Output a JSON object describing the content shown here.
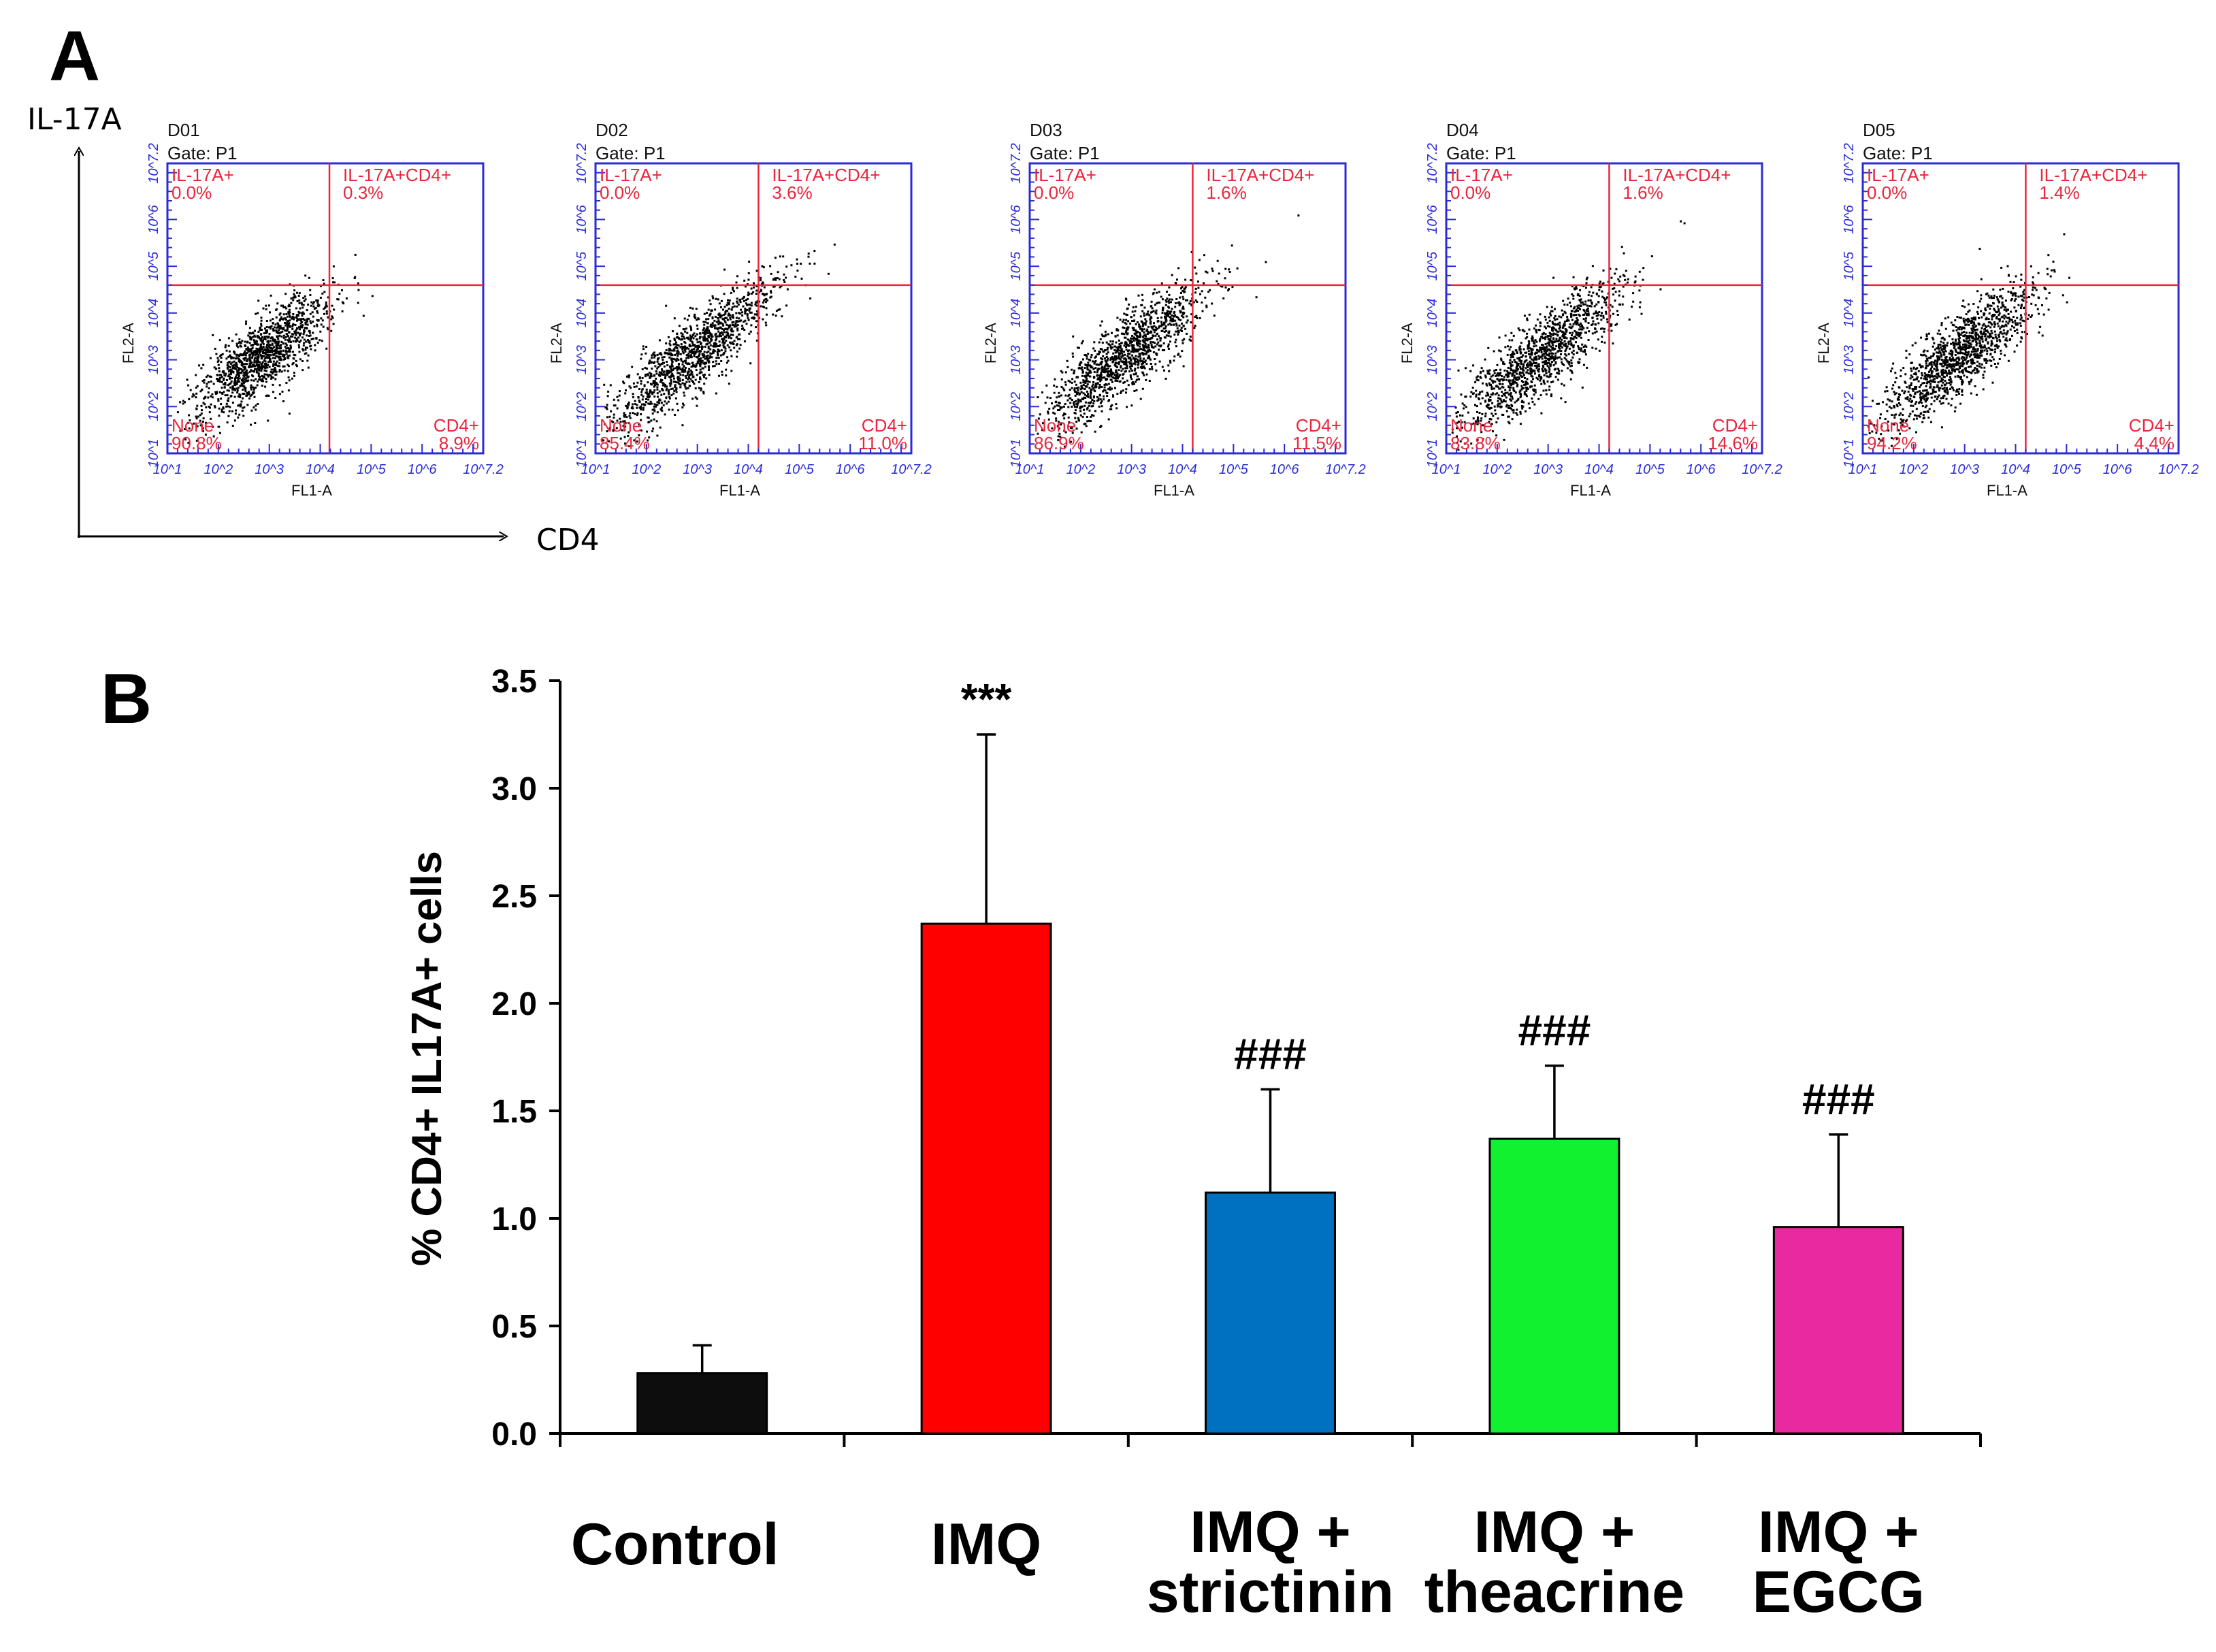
{
  "panels": {
    "a_letter": "A",
    "b_letter": "B"
  },
  "flow": {
    "y_axis_label": "IL-17A",
    "x_axis_label": "CD4",
    "plot_x_label": "FL1-A",
    "plot_y_label": "FL2-A",
    "tick_labels": [
      "10^1",
      "10^2",
      "10^3",
      "10^4",
      "10^5",
      "10^6",
      "10^7.2"
    ],
    "quadrant_names": {
      "ul": "IL-17A+",
      "ur": "IL-17A+CD4+",
      "ll": "None",
      "lr": "CD4+"
    },
    "colors": {
      "frame": "#2b2bd6",
      "gate": "#e8263c",
      "dots": "#000000"
    },
    "plots": [
      {
        "sample": "D01",
        "gate": "Gate: P1",
        "ul": "0.0%",
        "ur": "0.3%",
        "ll": "90.8%",
        "lr": "8.9%"
      },
      {
        "sample": "D02",
        "gate": "Gate: P1",
        "ul": "0.0%",
        "ur": "3.6%",
        "ll": "85.4%",
        "lr": "11.0%"
      },
      {
        "sample": "D03",
        "gate": "Gate: P1",
        "ul": "0.0%",
        "ur": "1.6%",
        "ll": "86.9%",
        "lr": "11.5%"
      },
      {
        "sample": "D04",
        "gate": "Gate: P1",
        "ul": "0.0%",
        "ur": "1.6%",
        "ll": "83.8%",
        "lr": "14.6%"
      },
      {
        "sample": "D05",
        "gate": "Gate: P1",
        "ul": "0.0%",
        "ur": "1.4%",
        "ll": "94.2%",
        "lr": "4.4%"
      }
    ]
  },
  "chart_data": {
    "type": "bar",
    "title": "",
    "xlabel": "",
    "ylabel": "% CD4+ IL17A+ cells",
    "ylim": [
      0,
      3.5
    ],
    "ytick_step": 0.5,
    "y_ticks": [
      "0.0",
      "0.5",
      "1.0",
      "1.5",
      "2.0",
      "2.5",
      "3.0",
      "3.5"
    ],
    "categories": [
      {
        "line1": "Control",
        "line2": ""
      },
      {
        "line1": "IMQ",
        "line2": ""
      },
      {
        "line1": "IMQ +",
        "line2": "strictinin"
      },
      {
        "line1": "IMQ +",
        "line2": "theacrine"
      },
      {
        "line1": "IMQ +",
        "line2": "EGCG"
      }
    ],
    "values": [
      0.28,
      2.37,
      1.12,
      1.37,
      0.96
    ],
    "errors": [
      0.13,
      0.88,
      0.48,
      0.34,
      0.43
    ],
    "colors": [
      "#0d0d0d",
      "#ff0000",
      "#0070c0",
      "#12f12f",
      "#e8299f"
    ],
    "annotations": [
      "",
      "***",
      "###",
      "###",
      "###"
    ]
  }
}
